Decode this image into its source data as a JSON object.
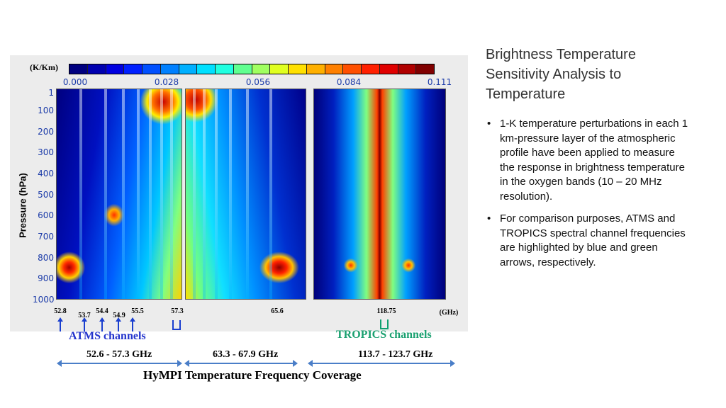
{
  "slide": {
    "title": "Brightness Temperature Sensitivity Analysis to Temperature",
    "bullets": [
      "1-K temperature perturbations in each 1 km-pressure layer of the atmospheric profile have been applied to measure the response in brightness temperature in the oxygen bands (10 – 20 MHz resolution).",
      "For comparison purposes, ATMS and TROPICS spectral channel frequencies are highlighted by blue and green arrows, respectively."
    ]
  },
  "figure": {
    "colorbar": {
      "unit": "(K/Km)",
      "ticks": [
        "0.000",
        "0.028",
        "0.056",
        "0.084",
        "0.111"
      ],
      "colors": [
        "#000080",
        "#0000b0",
        "#0000e0",
        "#0020ff",
        "#0050ff",
        "#0080ff",
        "#00b0ff",
        "#00e0ff",
        "#20ffe0",
        "#60ff90",
        "#a0ff60",
        "#e0ff20",
        "#ffe000",
        "#ffb000",
        "#ff8000",
        "#ff5000",
        "#ff2000",
        "#e00000",
        "#b00000",
        "#800000"
      ]
    },
    "y_axis": {
      "label": "Pressure (hPa)",
      "ticks": [
        "1",
        "100",
        "200",
        "300",
        "400",
        "500",
        "600",
        "700",
        "800",
        "900",
        "1000"
      ]
    },
    "frequency_labels": [
      "52.8",
      "53.7",
      "54.4",
      "54.9",
      "55.5",
      "57.3",
      "65.6",
      "118.75",
      "(GHz)"
    ],
    "atms_label": "ATMS channels",
    "tropics_label": "TROPICS channels",
    "ranges": [
      "52.6 - 57.3 GHz",
      "63.3 - 67.9 GHz",
      "113.7 - 123.7 GHz"
    ],
    "coverage_label": "HyMPI Temperature Frequency Coverage"
  }
}
